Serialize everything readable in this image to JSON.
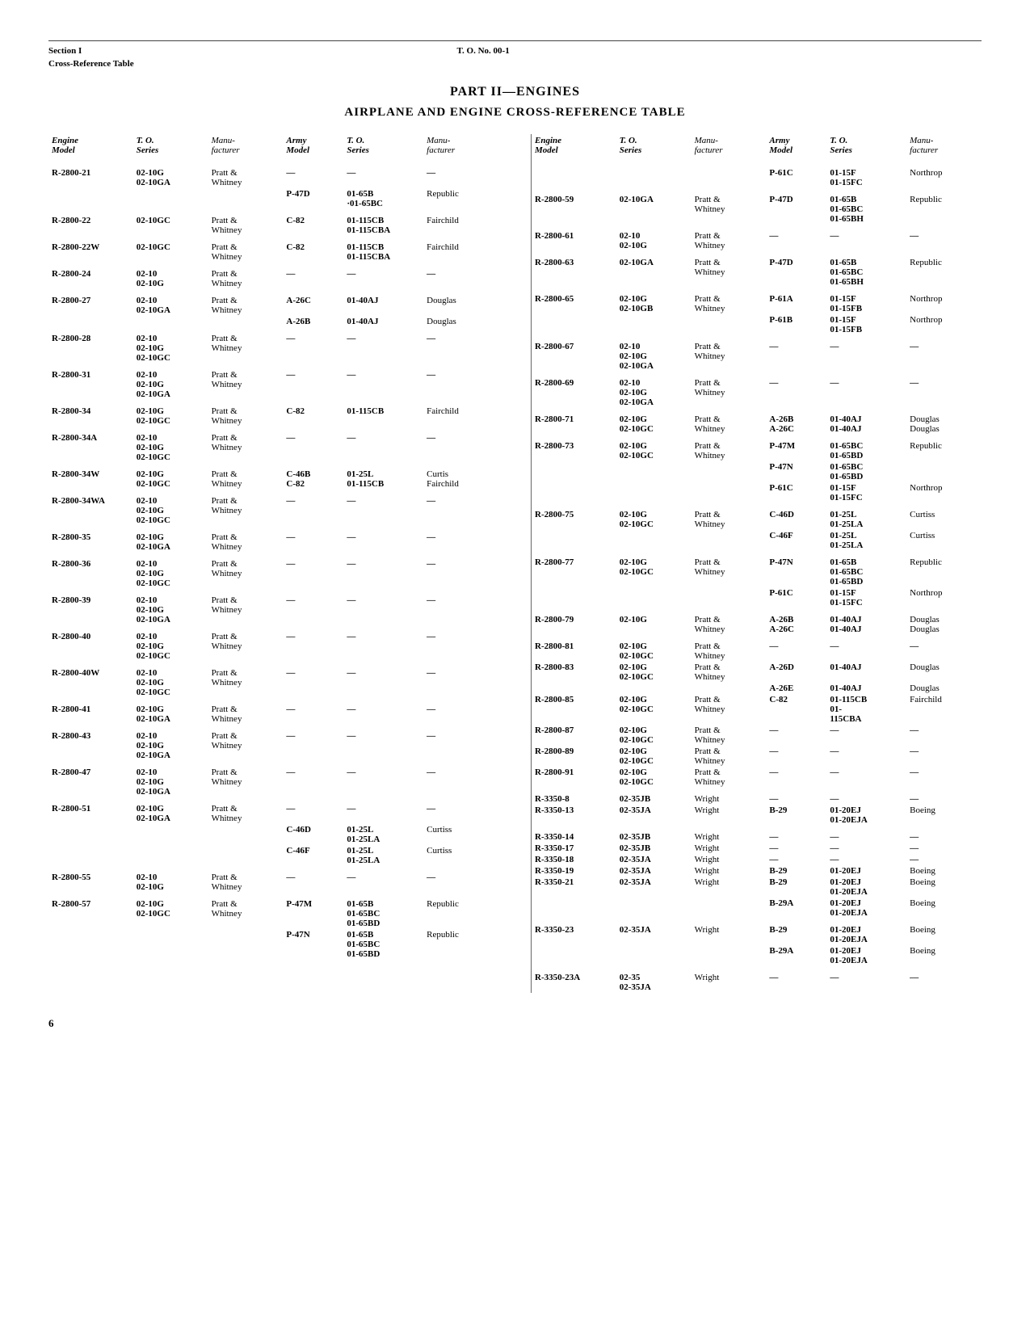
{
  "header": {
    "section": "Section I",
    "subtitle": "Cross-Reference Table",
    "to": "T. O. No. 00-1"
  },
  "titles": {
    "part": "PART II—ENGINES",
    "main": "AIRPLANE AND ENGINE CROSS-REFERENCE TABLE"
  },
  "colHeaders": {
    "engine": "Engine\nModel",
    "toSeries": "T. O.\nSeries",
    "manu": "Manu-\nfacturer",
    "army": "Army\nModel",
    "toSeries2": "T. O.\nSeries",
    "manu2": "Manu-\nfacturer"
  },
  "left": [
    {
      "g": 1,
      "e": "R-2800-21",
      "t": "02-10G\n02-10GA",
      "m": "Pratt &\nWhitney",
      "a": "—",
      "t2": "—",
      "m2": "—"
    },
    {
      "g": 0,
      "e": "",
      "t": "",
      "m": "",
      "a": "P-47D",
      "t2": "01-65B\n·01-65BC",
      "m2": "Republic"
    },
    {
      "g": 1,
      "e": "R-2800-22",
      "t": "02-10GC",
      "m": "Pratt &\nWhitney",
      "a": "C-82",
      "t2": "01-115CB\n01-115CBA",
      "m2": "Fairchild"
    },
    {
      "g": 1,
      "e": "R-2800-22W",
      "t": "02-10GC",
      "m": "Pratt &\nWhitney",
      "a": "C-82",
      "t2": "01-115CB\n01-115CBA",
      "m2": "Fairchild"
    },
    {
      "g": 1,
      "e": "R-2800-24",
      "t": "02-10\n02-10G",
      "m": "Pratt &\nWhitney",
      "a": "—",
      "t2": "—",
      "m2": "—"
    },
    {
      "g": 1,
      "e": "R-2800-27",
      "t": "02-10\n02-10GA",
      "m": "Pratt &\nWhitney",
      "a": "A-26C",
      "t2": "01-40AJ",
      "m2": "Douglas"
    },
    {
      "g": 0,
      "e": "",
      "t": "",
      "m": "",
      "a": "A-26B",
      "t2": "01-40AJ",
      "m2": "Douglas"
    },
    {
      "g": 1,
      "e": "R-2800-28",
      "t": "02-10\n02-10G\n02-10GC",
      "m": "Pratt &\nWhitney",
      "a": "—",
      "t2": "—",
      "m2": "—"
    },
    {
      "g": 1,
      "e": "R-2800-31",
      "t": "02-10\n02-10G\n02-10GA",
      "m": "Pratt &\nWhitney",
      "a": "—",
      "t2": "—",
      "m2": "—"
    },
    {
      "g": 1,
      "e": "R-2800-34",
      "t": "02-10G\n02-10GC",
      "m": "Pratt &\nWhitney",
      "a": "C-82",
      "t2": "01-115CB",
      "m2": "Fairchild"
    },
    {
      "g": 1,
      "e": "R-2800-34A",
      "t": "02-10\n02-10G\n02-10GC",
      "m": "Pratt &\nWhitney",
      "a": "—",
      "t2": "—",
      "m2": "—"
    },
    {
      "g": 1,
      "e": "R-2800-34W",
      "t": "02-10G\n02-10GC",
      "m": "Pratt &\nWhitney",
      "a": "C-46B\nC-82",
      "t2": "01-25L\n01-115CB",
      "m2": "Curtis\nFairchild"
    },
    {
      "g": 1,
      "e": "R-2800-34WA",
      "t": "02-10\n02-10G\n02-10GC",
      "m": "Pratt &\nWhitney",
      "a": "—",
      "t2": "—",
      "m2": "—"
    },
    {
      "g": 1,
      "e": "R-2800-35",
      "t": "02-10G\n02-10GA",
      "m": "Pratt &\nWhitney",
      "a": "—",
      "t2": "—",
      "m2": "—"
    },
    {
      "g": 1,
      "e": "R-2800-36",
      "t": "02-10\n02-10G\n02-10GC",
      "m": "Pratt &\nWhitney",
      "a": "—",
      "t2": "—",
      "m2": "—"
    },
    {
      "g": 1,
      "e": "R-2800-39",
      "t": "02-10\n02-10G\n02-10GA",
      "m": "Pratt &\nWhitney",
      "a": "—",
      "t2": "—",
      "m2": "—"
    },
    {
      "g": 1,
      "e": "R-2800-40",
      "t": "02-10\n02-10G\n02-10GC",
      "m": "Pratt &\nWhitney",
      "a": "—",
      "t2": "—",
      "m2": "—"
    },
    {
      "g": 1,
      "e": "R-2800-40W",
      "t": "02-10\n02-10G\n02-10GC",
      "m": "Pratt &\nWhitney",
      "a": "—",
      "t2": "—",
      "m2": "—"
    },
    {
      "g": 1,
      "e": "R-2800-41",
      "t": "02-10G\n02-10GA",
      "m": "Pratt &\nWhitney",
      "a": "—",
      "t2": "—",
      "m2": "—"
    },
    {
      "g": 1,
      "e": "R-2800-43",
      "t": "02-10\n02-10G\n02-10GA",
      "m": "Pratt &\nWhitney",
      "a": "—",
      "t2": "—",
      "m2": "—"
    },
    {
      "g": 1,
      "e": "R-2800-47",
      "t": "02-10\n02-10G\n02-10GA",
      "m": "Pratt &\nWhitney",
      "a": "—",
      "t2": "—",
      "m2": "—"
    },
    {
      "g": 1,
      "e": "R-2800-51",
      "t": "02-10G\n02-10GA",
      "m": "Pratt &\nWhitney",
      "a": "—",
      "t2": "—",
      "m2": "—"
    },
    {
      "g": 0,
      "e": "",
      "t": "",
      "m": "",
      "a": "C-46D",
      "t2": "01-25L\n01-25LA",
      "m2": "Curtiss"
    },
    {
      "g": 0,
      "e": "",
      "t": "",
      "m": "",
      "a": "C-46F",
      "t2": "01-25L\n01-25LA",
      "m2": "Curtiss"
    },
    {
      "g": 1,
      "e": "R-2800-55",
      "t": "02-10\n02-10G",
      "m": "Pratt &\nWhitney",
      "a": "—",
      "t2": "—",
      "m2": "—"
    },
    {
      "g": 1,
      "e": "R-2800-57",
      "t": "02-10G\n02-10GC",
      "m": "Pratt &\nWhitney",
      "a": "P-47M",
      "t2": "01-65B\n01-65BC\n01-65BD",
      "m2": "Republic"
    },
    {
      "g": 0,
      "e": "",
      "t": "",
      "m": "",
      "a": "P-47N",
      "t2": "01-65B\n01-65BC\n01-65BD",
      "m2": "Republic"
    }
  ],
  "right": [
    {
      "g": 1,
      "e": "",
      "t": "",
      "m": "",
      "a": "P-61C",
      "t2": "01-15F\n01-15FC",
      "m2": "Northrop"
    },
    {
      "g": 1,
      "e": "R-2800-59",
      "t": "02-10GA",
      "m": "Pratt &\nWhitney",
      "a": "P-47D",
      "t2": "01-65B\n01-65BC\n01-65BH",
      "m2": "Republic"
    },
    {
      "g": 1,
      "e": "R-2800-61",
      "t": "02-10\n02-10G",
      "m": "Pratt &\nWhitney",
      "a": "—",
      "t2": "—",
      "m2": "—"
    },
    {
      "g": 1,
      "e": "R-2800-63",
      "t": "02-10GA",
      "m": "Pratt &\nWhitney",
      "a": "P-47D",
      "t2": "01-65B\n01-65BC\n01-65BH",
      "m2": "Republic"
    },
    {
      "g": 1,
      "e": "R-2800-65",
      "t": "02-10G\n02-10GB",
      "m": "Pratt &\nWhitney",
      "a": "P-61A",
      "t2": "01-15F\n01-15FB",
      "m2": "Northrop"
    },
    {
      "g": 0,
      "e": "",
      "t": "",
      "m": "",
      "a": "P-61B",
      "t2": "01-15F\n01-15FB",
      "m2": "Northrop"
    },
    {
      "g": 1,
      "e": "R-2800-67",
      "t": "02-10\n02-10G\n02-10GA",
      "m": "Pratt &\nWhitney",
      "a": "—",
      "t2": "—",
      "m2": "—"
    },
    {
      "g": 1,
      "e": "R-2800-69",
      "t": "02-10\n02-10G\n02-10GA",
      "m": "Pratt &\nWhitney",
      "a": "—",
      "t2": "—",
      "m2": "—"
    },
    {
      "g": 1,
      "e": "R-2800-71",
      "t": "02-10G\n02-10GC",
      "m": "Pratt &\nWhitney",
      "a": "A-26B\nA-26C",
      "t2": "01-40AJ\n01-40AJ",
      "m2": "Douglas\nDouglas"
    },
    {
      "g": 1,
      "e": "R-2800-73",
      "t": "02-10G\n02-10GC",
      "m": "Pratt &\nWhitney",
      "a": "P-47M",
      "t2": "01-65BC\n01-65BD",
      "m2": "Republic"
    },
    {
      "g": 0,
      "e": "",
      "t": "",
      "m": "",
      "a": "P-47N",
      "t2": "01-65BC\n01-65BD",
      "m2": ""
    },
    {
      "g": 0,
      "e": "",
      "t": "",
      "m": "",
      "a": "P-61C",
      "t2": "01-15F\n01-15FC",
      "m2": "Northrop"
    },
    {
      "g": 1,
      "e": "R-2800-75",
      "t": "02-10G\n02-10GC",
      "m": "Pratt &\nWhitney",
      "a": "C-46D",
      "t2": "01-25L\n01-25LA",
      "m2": "Curtiss"
    },
    {
      "g": 0,
      "e": "",
      "t": "",
      "m": "",
      "a": "C-46F",
      "t2": "01-25L\n01-25LA",
      "m2": "Curtiss"
    },
    {
      "g": 1,
      "e": "R-2800-77",
      "t": "02-10G\n02-10GC",
      "m": "Pratt &\nWhitney",
      "a": "P-47N",
      "t2": "01-65B\n01-65BC\n01-65BD",
      "m2": "Republic"
    },
    {
      "g": 0,
      "e": "",
      "t": "",
      "m": "",
      "a": "P-61C",
      "t2": "01-15F\n01-15FC",
      "m2": "Northrop"
    },
    {
      "g": 1,
      "e": "R-2800-79",
      "t": "02-10G",
      "m": "Pratt &\nWhitney",
      "a": "A-26B\nA-26C",
      "t2": "01-40AJ\n01-40AJ",
      "m2": "Douglas\nDouglas"
    },
    {
      "g": 1,
      "e": "R-2800-81",
      "t": "02-10G\n02-10GC",
      "m": "Pratt &\nWhitney",
      "a": "—",
      "t2": "—",
      "m2": "—"
    },
    {
      "g": 0,
      "e": "R-2800-83",
      "t": "02-10G\n02-10GC",
      "m": "Pratt &\nWhitney",
      "a": "A-26D",
      "t2": "01-40AJ",
      "m2": "Douglas"
    },
    {
      "g": 0,
      "e": "",
      "t": "",
      "m": "",
      "a": "A-26E",
      "t2": "01-40AJ",
      "m2": "Douglas"
    },
    {
      "g": 0,
      "e": "R-2800-85",
      "t": "02-10G\n02-10GC",
      "m": "Pratt &\nWhitney",
      "a": "C-82",
      "t2": "01-115CB\n01-\n115CBA",
      "m2": "Fairchild"
    },
    {
      "g": 0,
      "e": "R-2800-87",
      "t": "02-10G\n02-10GC",
      "m": "Pratt &\nWhitney",
      "a": "—",
      "t2": "—",
      "m2": "—"
    },
    {
      "g": 0,
      "e": "R-2800-89",
      "t": "02-10G\n02-10GC",
      "m": "Pratt &\nWhitney",
      "a": "—",
      "t2": "—",
      "m2": "—"
    },
    {
      "g": 0,
      "e": "R-2800-91",
      "t": "02-10G\n02-10GC",
      "m": "Pratt &\nWhitney",
      "a": "—",
      "t2": "—",
      "m2": "—"
    },
    {
      "g": 1,
      "e": "R-3350-8",
      "t": "02-35JB",
      "m": "Wright",
      "a": "—",
      "t2": "—",
      "m2": "—"
    },
    {
      "g": 0,
      "e": "R-3350-13",
      "t": "02-35JA",
      "m": "Wright",
      "a": "B-29",
      "t2": "01-20EJ\n01-20EJA",
      "m2": "Boeing"
    },
    {
      "g": 1,
      "e": "R-3350-14",
      "t": "02-35JB",
      "m": "Wright",
      "a": "—",
      "t2": "—",
      "m2": "—"
    },
    {
      "g": 0,
      "e": "R-3350-17",
      "t": "02-35JB",
      "m": "Wright",
      "a": "—",
      "t2": "—",
      "m2": "—"
    },
    {
      "g": 0,
      "e": "R-3350-18",
      "t": "02-35JA",
      "m": "Wright",
      "a": "—",
      "t2": "—",
      "m2": "—"
    },
    {
      "g": 0,
      "e": "R-3350-19",
      "t": "02-35JA",
      "m": "Wright",
      "a": "B-29",
      "t2": "01-20EJ",
      "m2": "Boeing"
    },
    {
      "g": 0,
      "e": "R-3350-21",
      "t": "02-35JA",
      "m": "Wright",
      "a": "B-29",
      "t2": "01-20EJ\n01-20EJA",
      "m2": "Boeing"
    },
    {
      "g": 0,
      "e": "",
      "t": "",
      "m": "",
      "a": "B-29A",
      "t2": "01-20EJ\n01-20EJA",
      "m2": "Boeing"
    },
    {
      "g": 1,
      "e": "R-3350-23",
      "t": "02-35JA",
      "m": "Wright",
      "a": "B-29",
      "t2": "01-20EJ\n01-20EJA",
      "m2": "Boeing"
    },
    {
      "g": 0,
      "e": "",
      "t": "",
      "m": "",
      "a": "B-29A",
      "t2": "01-20EJ\n01-20EJA",
      "m2": "Boeing"
    },
    {
      "g": 1,
      "e": "R-3350-23A",
      "t": "02-35\n02-35JA",
      "m": "Wright",
      "a": "—",
      "t2": "—",
      "m2": "—"
    }
  ],
  "pageNumber": "6"
}
